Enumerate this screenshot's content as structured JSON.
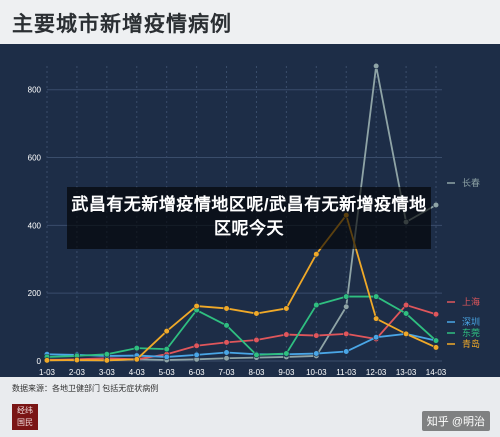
{
  "page": {
    "title": "主要城市新增疫情病例",
    "source": "数据来源：各地卫健部门 包括无症状病例",
    "logo_text": "经纬 国民",
    "watermark": "知乎 @明治",
    "overlay_title": "武昌有无新增疫情地区呢/武昌有无新增疫情地区呢今天"
  },
  "colors": {
    "plot_bg": "#1d2d47",
    "grid": "#3a4d6b",
    "axis_text": "#ffffff",
    "长春": "#8fa4a6",
    "上海": "#e0565b",
    "深圳": "#4aa6e6",
    "东莞": "#2fbf80",
    "青岛": "#f0a928"
  },
  "chart_data": {
    "type": "line",
    "title": "主要城市新增疫情病例",
    "categories": [
      "1-03",
      "2-03",
      "3-03",
      "4-03",
      "5-03",
      "6-03",
      "7-03",
      "8-03",
      "9-03",
      "10-03",
      "11-03",
      "12-03",
      "13-03",
      "14-03"
    ],
    "y_ticks": [
      0,
      200,
      400,
      600,
      800
    ],
    "ylim": [
      0,
      870
    ],
    "grid": true,
    "legend_position": "right",
    "series": [
      {
        "name": "长春",
        "values": [
          4,
          2,
          2,
          5,
          3,
          5,
          8,
          10,
          12,
          15,
          160,
          870,
          410,
          460
        ]
      },
      {
        "name": "上海",
        "values": [
          3,
          5,
          8,
          5,
          20,
          45,
          55,
          62,
          78,
          75,
          80,
          65,
          165,
          138
        ]
      },
      {
        "name": "深圳",
        "values": [
          20,
          18,
          15,
          16,
          12,
          18,
          25,
          20,
          20,
          22,
          28,
          70,
          80,
          60
        ]
      },
      {
        "name": "东莞",
        "values": [
          12,
          15,
          20,
          38,
          35,
          150,
          105,
          18,
          22,
          165,
          190,
          190,
          140,
          60
        ]
      },
      {
        "name": "青岛",
        "values": [
          2,
          3,
          2,
          5,
          88,
          162,
          155,
          140,
          155,
          315,
          430,
          125,
          80,
          40
        ]
      }
    ]
  }
}
